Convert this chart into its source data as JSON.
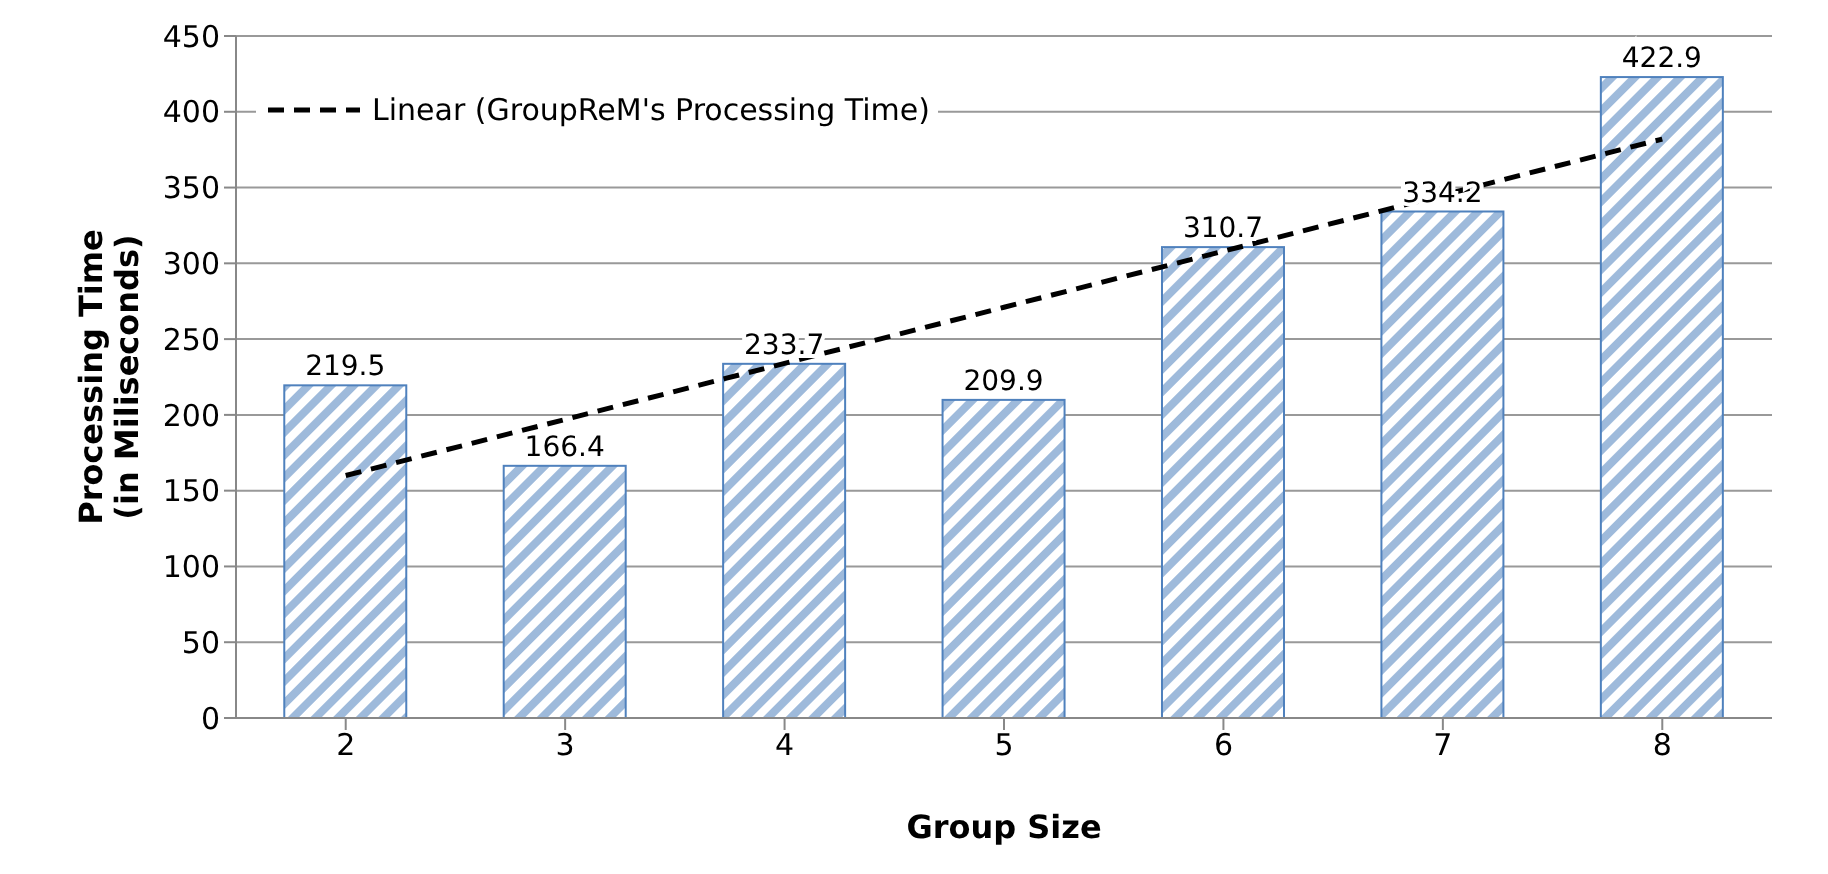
{
  "chart_data": {
    "type": "bar",
    "xlabel": "Group Size",
    "ylabel": "Processing Time\n(in Miliseconds)",
    "categories": [
      "2",
      "3",
      "4",
      "5",
      "6",
      "7",
      "8"
    ],
    "series": [
      {
        "color": "#4f81bd",
        "values": [
          219.5,
          166.4,
          233.7,
          209.9,
          310.7,
          334.2,
          422.9
        ],
        "value_labels": [
          "219.5",
          "166.4",
          "233.7",
          "209.9",
          "310.7",
          "334.2",
          "422.9"
        ]
      },
      {
        "type": "line",
        "name": "Linear (GroupReM's Processing Time)",
        "color": "#000000",
        "line_style": "dashed",
        "marker": "none",
        "values": [
          160,
          197,
          234,
          271,
          308,
          345,
          382
        ]
      }
    ],
    "ylim": [
      0,
      450
    ],
    "yticks": [
      0,
      50,
      100,
      150,
      200,
      250,
      300,
      350,
      400,
      450
    ],
    "grid": "y",
    "legend": "top left"
  }
}
